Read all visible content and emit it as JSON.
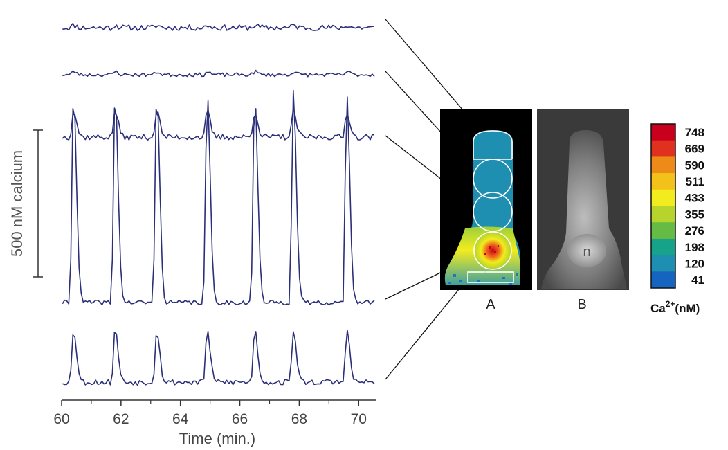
{
  "chart_data": {
    "type": "line",
    "xlabel": "Time (min.)",
    "xlim": [
      60,
      70.6
    ],
    "x_ticks": [
      "60",
      "62",
      "64",
      "66",
      "68",
      "70"
    ],
    "scale_bar_label": "500 nM calcium",
    "scale_bar_value_nM": 500,
    "peak_times_min": [
      60.4,
      61.8,
      63.2,
      64.9,
      66.5,
      67.8,
      69.6
    ],
    "series": [
      {
        "baseline_nM": 40,
        "peak_nM": 25,
        "noise_nM": 28,
        "seed": 11
      },
      {
        "baseline_nM": 45,
        "peak_nM": 30,
        "noise_nM": 18,
        "seed": 23
      },
      {
        "baseline_nM": 50,
        "peak_nM": 90,
        "noise_nM": 10,
        "seed": 37
      },
      {
        "baseline_nM": 60,
        "peak_nM": 720,
        "noise_nM": 8,
        "seed": 41
      },
      {
        "baseline_nM": 50,
        "peak_nM": 180,
        "noise_nM": 10,
        "seed": 53
      }
    ],
    "panels": [
      "A",
      "B"
    ],
    "nucleus_label": "n",
    "colorbar": {
      "title_main": "Ca",
      "title_sup": "2+",
      "title_unit": "(nM)",
      "labels": [
        "748",
        "669",
        "590",
        "511",
        "433",
        "355",
        "276",
        "198",
        "120",
        "41"
      ],
      "colors": [
        "#c8001e",
        "#e0301e",
        "#ee8a18",
        "#f3c21a",
        "#f2ec1e",
        "#b6d42c",
        "#66bb44",
        "#17a389",
        "#1e8fb0",
        "#1565c0"
      ]
    },
    "axis_color": "#333333",
    "trace_color": "#2b2f7a"
  }
}
